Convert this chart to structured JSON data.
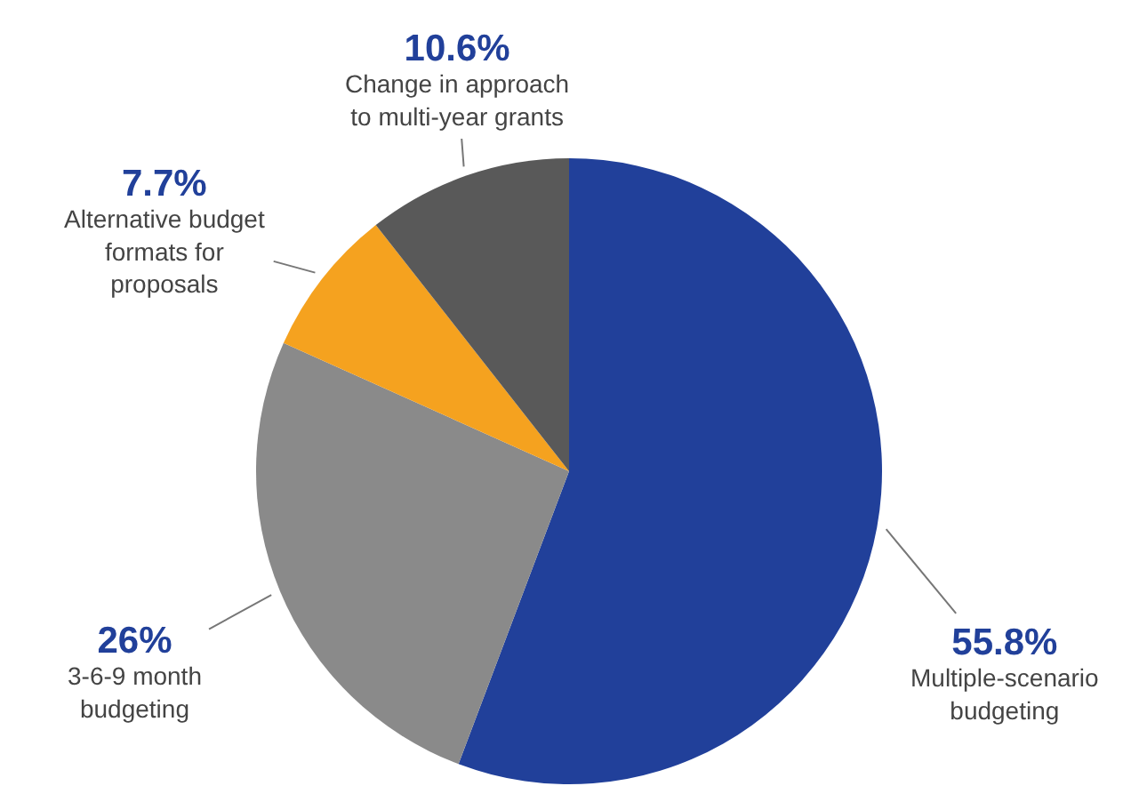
{
  "chart_data": {
    "type": "pie",
    "categories": [
      "Multiple-scenario budgeting",
      "3-6-9 month budgeting",
      "Alternative budget formats for proposals",
      "Change in approach to multi-year grants"
    ],
    "values": [
      55.8,
      26,
      7.7,
      10.6
    ],
    "colors": [
      "#21409a",
      "#8a8a8a",
      "#f5a21f",
      "#595959"
    ],
    "value_labels": [
      "55.8%",
      "26%",
      "7.7%",
      "10.6%"
    ],
    "legend": false
  }
}
